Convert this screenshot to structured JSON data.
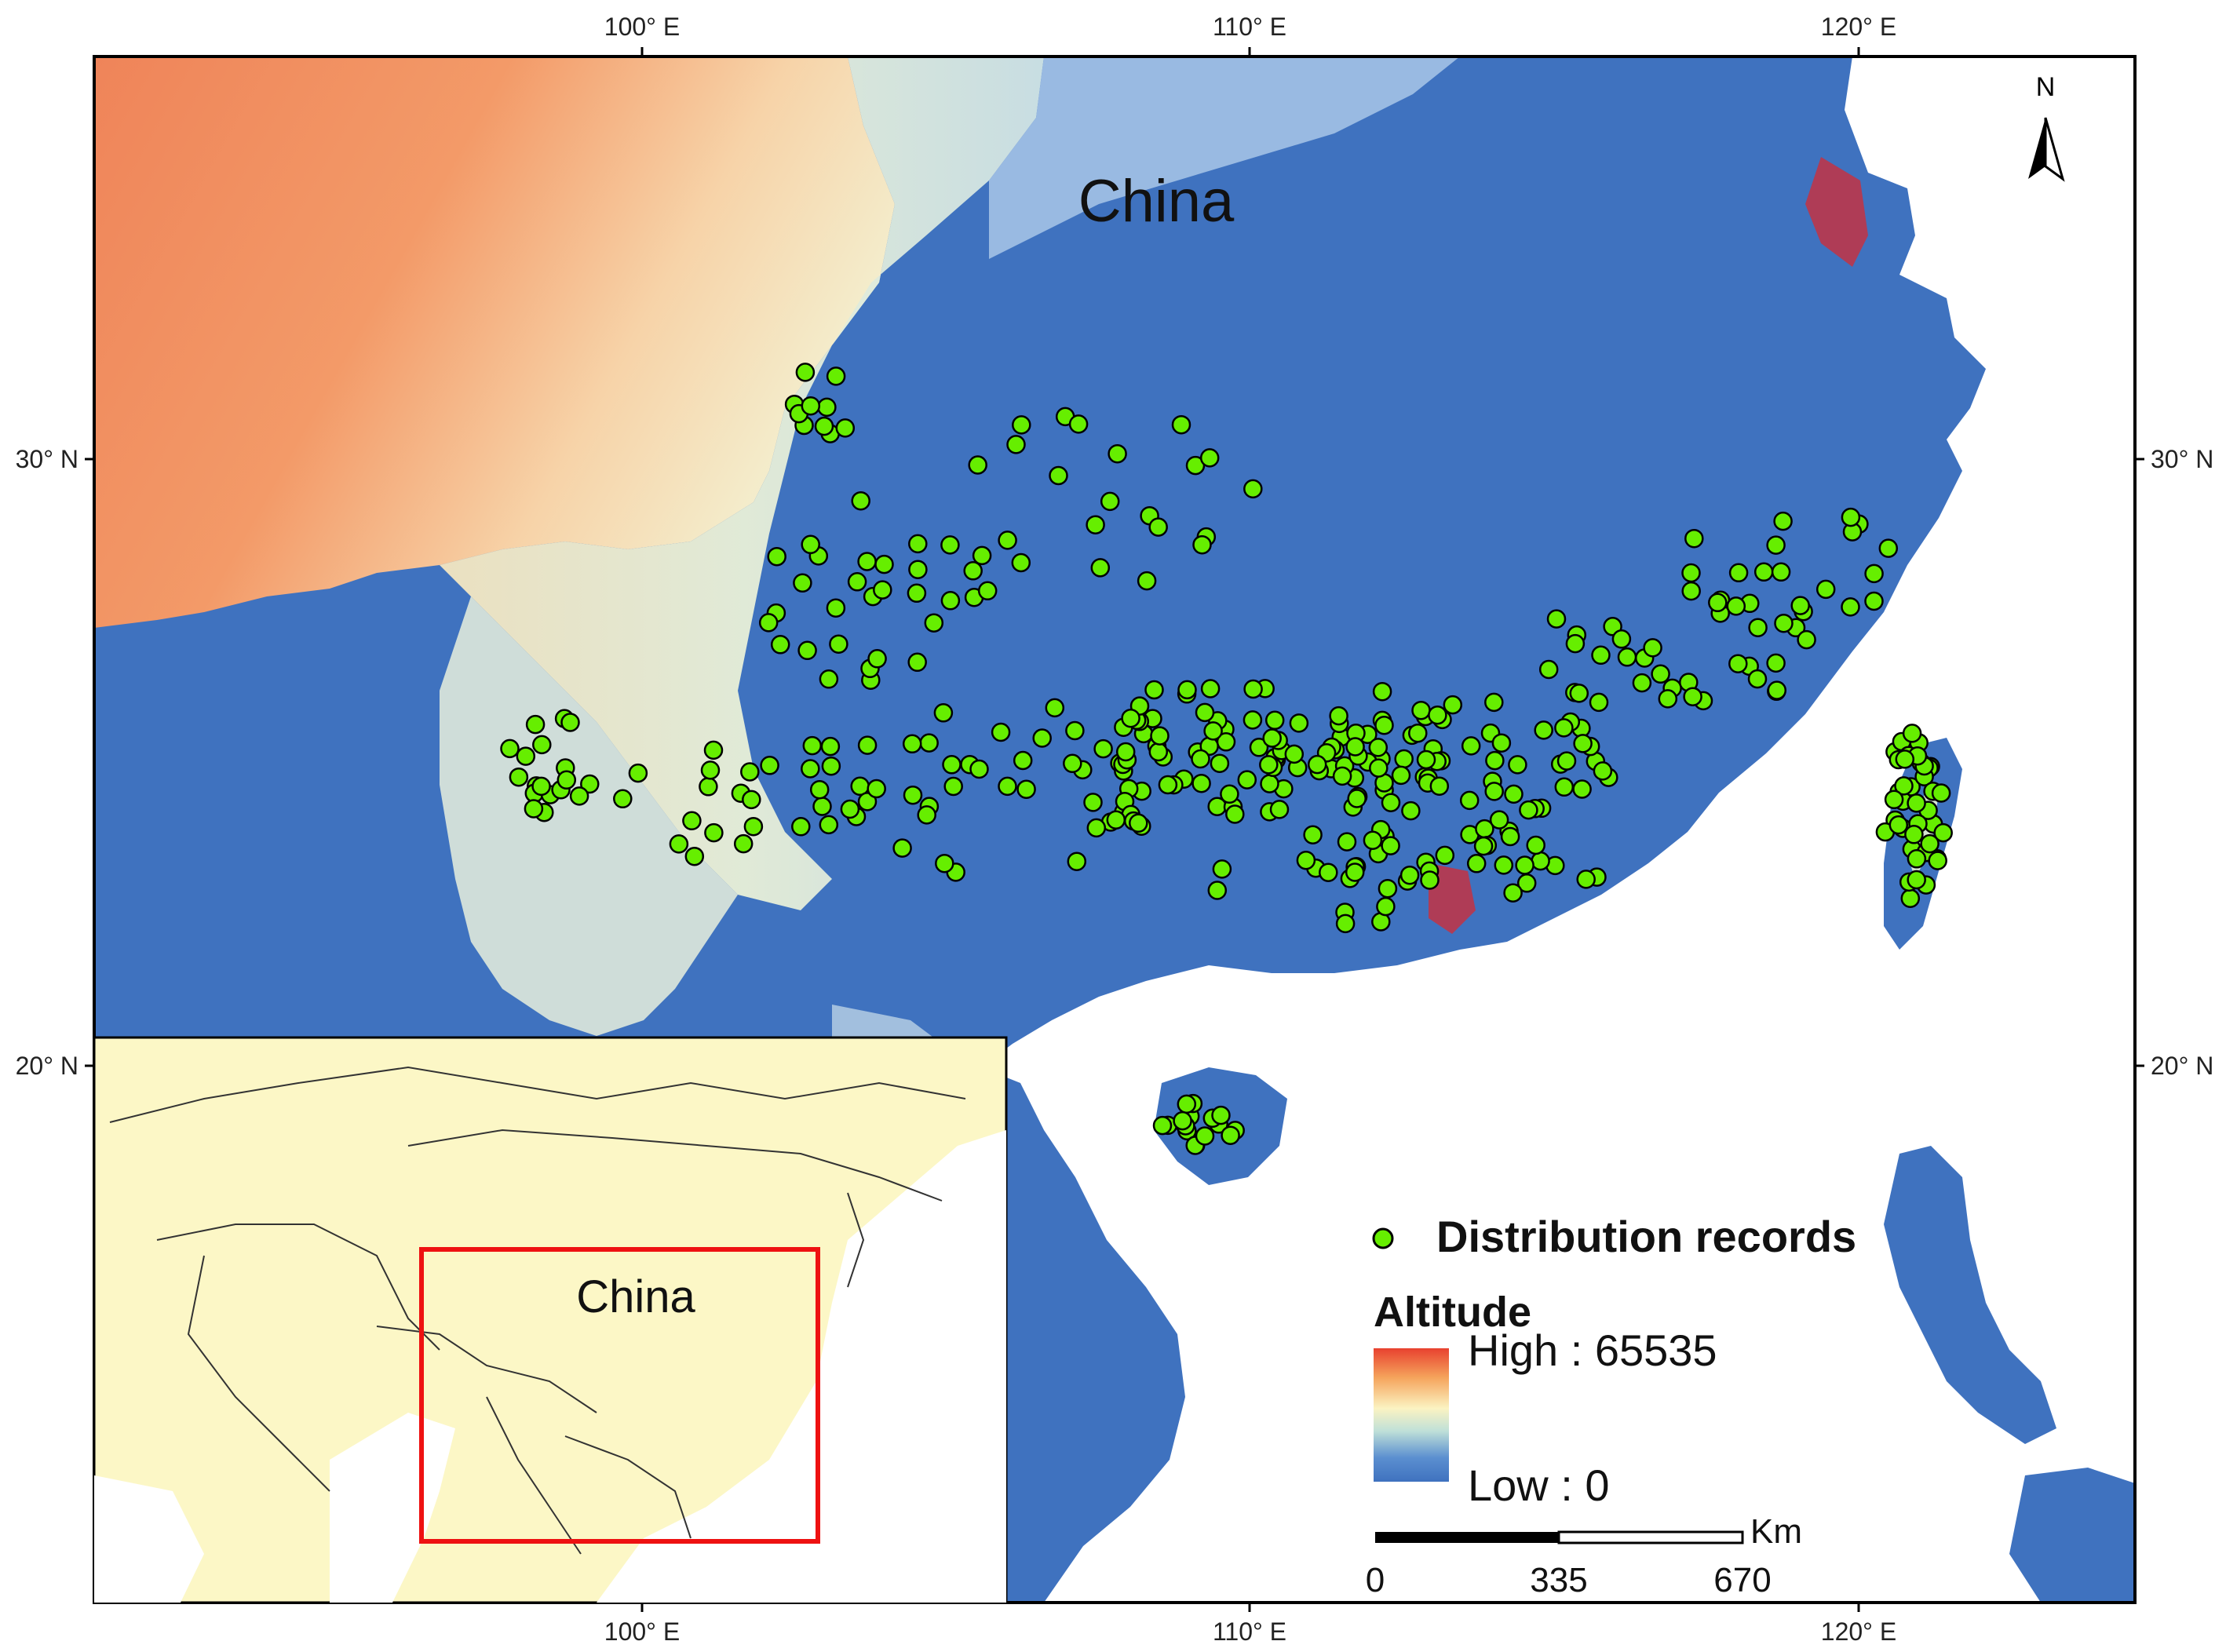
{
  "map": {
    "region_label": "China",
    "axes": {
      "longitude_ticks": [
        "100° E",
        "110° E",
        "120° E"
      ],
      "latitude_ticks": [
        "30° N",
        "20° N"
      ]
    },
    "north_arrow": {
      "label": "N",
      "icon": "north-arrow-icon"
    },
    "legend": {
      "records_label": "Distribution records",
      "records_color": "#66ee00",
      "altitude_title": "Altitude",
      "high_label": "High : 65535",
      "low_label": "Low : 0",
      "ramp_colors": [
        "#e8412f",
        "#f5a45c",
        "#fbf3c2",
        "#bfe0d8",
        "#5b8fd0",
        "#3f72bf"
      ]
    },
    "scale_bar": {
      "unit": "Km",
      "ticks": [
        "0",
        "335",
        "670"
      ]
    },
    "inset": {
      "label": "China",
      "land_color": "#fcf7c6",
      "frame_color": "#ee1111"
    },
    "colors": {
      "lowland": "#3f72bf",
      "plateau_high": "#ef8a5a",
      "plateau_mid": "#f6c89a",
      "foothill": "#e7efd6",
      "sea": "#ffffff",
      "urban": "#cc2e3c"
    }
  }
}
